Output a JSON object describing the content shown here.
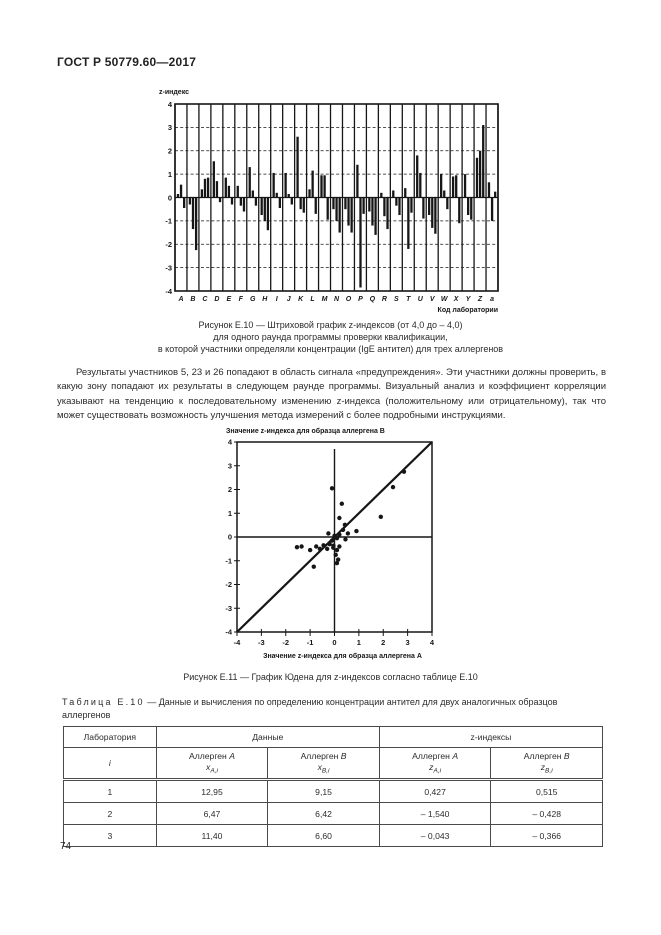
{
  "page": {
    "header": "ГОСТ Р 50779.60—2017",
    "page_number": "74"
  },
  "figure_e10": {
    "caption_lines": [
      "Рисунок Е.10 — Штриховой график z-индексов (от 4,0 до – 4,0)",
      "для одного раунда программы проверки квалификации,",
      "в которой участники определяли концентрации (IgE антител) для трех аллергенов"
    ]
  },
  "paragraph": "Результаты участников 5, 23 и 26 попадают в область сигнала «предупреждения». Эти участники должны проверить, в какую зону попадают их результаты в следующем раунде программы. Визуальный анализ и коэффициент корреляции указывают на тенденцию к последовательному изменению z-индекса (положительному или отрицательному), так что может существовать возможность улучшения метода измерений с более подробными инструкциями.",
  "figure_e11": {
    "caption": "Рисунок Е.11 — График Юдена для z-индексов согласно таблице Е.10"
  },
  "table_e10": {
    "caption_label": "Таблица Е.10",
    "caption_text": " — Данные и вычисления по определению концентрации антител для двух аналогичных образцов аллергенов",
    "header": {
      "col_lab": "Лаборатория",
      "col_lab_sub": "i",
      "group_data": "Данные",
      "group_z": "z-индексы",
      "sub_headers": [
        {
          "label": "Аллерген",
          "letter": "A",
          "var": "x",
          "sub": "A,i"
        },
        {
          "label": "Аллерген",
          "letter": "B",
          "var": "x",
          "sub": "B,i"
        },
        {
          "label": "Аллерген",
          "letter": "A",
          "var": "z",
          "sub": "A,i"
        },
        {
          "label": "Аллерген",
          "letter": "B",
          "var": "z",
          "sub": "B,i"
        }
      ]
    },
    "rows": [
      [
        "1",
        "12,95",
        "9,15",
        "0,427",
        "0,515"
      ],
      [
        "2",
        "6,47",
        "6,42",
        "– 1,540",
        "– 0,428"
      ],
      [
        "3",
        "11,40",
        "6,60",
        "– 0,043",
        "– 0,366"
      ]
    ]
  },
  "chart_data": [
    {
      "type": "bar",
      "title": "z-индекс",
      "xlabel": "Код лаборатории",
      "ylabel": "z-индекс",
      "ylim": [
        -4,
        4
      ],
      "grid": "horizontal-dashed, vertical-solid-per-category",
      "yticks": [
        "4",
        "3",
        "2",
        "1",
        "0",
        "-1",
        "-2",
        "-3",
        "-4"
      ],
      "categories": [
        "A",
        "B",
        "C",
        "D",
        "E",
        "F",
        "G",
        "H",
        "I",
        "J",
        "K",
        "L",
        "M",
        "N",
        "O",
        "P",
        "Q",
        "R",
        "S",
        "T",
        "U",
        "V",
        "W",
        "X",
        "Y",
        "Z",
        "a"
      ],
      "bars_per_category": 3,
      "values_per_category": [
        [
          0.15,
          0.55,
          -0.45
        ],
        [
          -0.3,
          -1.35,
          -2.25
        ],
        [
          0.35,
          0.8,
          0.85
        ],
        [
          1.55,
          0.7,
          -0.2
        ],
        [
          0.85,
          0.5,
          -0.3
        ],
        [
          0.5,
          -0.35,
          -0.6
        ],
        [
          1.3,
          0.3,
          -0.35
        ],
        [
          -0.75,
          -1.0,
          -1.4
        ],
        [
          1.05,
          0.2,
          -0.45
        ],
        [
          1.05,
          0.15,
          -0.3
        ],
        [
          2.6,
          -0.5,
          -0.65
        ],
        [
          0.35,
          1.15,
          -0.7
        ],
        [
          0.95,
          0.95,
          -0.95
        ],
        [
          -0.5,
          -1.0,
          -1.5
        ],
        [
          -0.5,
          -1.2,
          -1.5
        ],
        [
          1.4,
          -3.85,
          -0.7
        ],
        [
          -0.6,
          -1.2,
          -1.6
        ],
        [
          0.2,
          -0.8,
          -1.35
        ],
        [
          0.3,
          -0.35,
          -0.75
        ],
        [
          0.4,
          -2.2,
          -0.65
        ],
        [
          1.8,
          1.05,
          -0.9
        ],
        [
          -0.75,
          -1.3,
          -1.55
        ],
        [
          1.0,
          0.3,
          -0.5
        ],
        [
          0.9,
          0.95,
          -1.1
        ],
        [
          1.0,
          -0.75,
          -0.95
        ],
        [
          1.7,
          2.0,
          3.1
        ],
        [
          0.65,
          -1.0,
          0.25
        ]
      ]
    },
    {
      "type": "scatter",
      "title": "Значение z-индекса для образца аллергена B",
      "xlabel": "Значение z-индекса для образца аллергена A",
      "xlim": [
        -4,
        4
      ],
      "ylim": [
        -4,
        4
      ],
      "xticks": [
        "-4",
        "-3",
        "-2",
        "-1",
        "0",
        "1",
        "2",
        "3",
        "4"
      ],
      "yticks": [
        "4",
        "3",
        "2",
        "1",
        "0",
        "-1",
        "-2",
        "-3",
        "-4"
      ],
      "identity_line": true,
      "zero_lines": true,
      "points": [
        [
          -0.1,
          2.05
        ],
        [
          0.3,
          1.4
        ],
        [
          0.2,
          0.8
        ],
        [
          0.427,
          0.515
        ],
        [
          2.4,
          2.1
        ],
        [
          2.85,
          2.75
        ],
        [
          1.9,
          0.85
        ],
        [
          0.9,
          0.25
        ],
        [
          0.55,
          0.15
        ],
        [
          0.45,
          -0.1
        ],
        [
          0.2,
          0.1
        ],
        [
          0.1,
          -0.05
        ],
        [
          0.0,
          0.05
        ],
        [
          -0.1,
          -0.15
        ],
        [
          -0.2,
          -0.3
        ],
        [
          -0.05,
          -0.45
        ],
        [
          0.1,
          -0.55
        ],
        [
          0.2,
          -0.4
        ],
        [
          0.05,
          -0.75
        ],
        [
          0.15,
          -0.95
        ],
        [
          0.1,
          -1.1
        ],
        [
          -0.3,
          -0.5
        ],
        [
          -0.45,
          -0.35
        ],
        [
          -0.6,
          -0.5
        ],
        [
          -0.75,
          -0.4
        ],
        [
          -1.0,
          -0.55
        ],
        [
          -1.35,
          -0.4
        ],
        [
          -1.54,
          -0.428
        ],
        [
          -0.85,
          -1.25
        ],
        [
          -0.043,
          -0.366
        ],
        [
          0.35,
          0.3
        ],
        [
          -0.25,
          0.15
        ]
      ]
    }
  ]
}
